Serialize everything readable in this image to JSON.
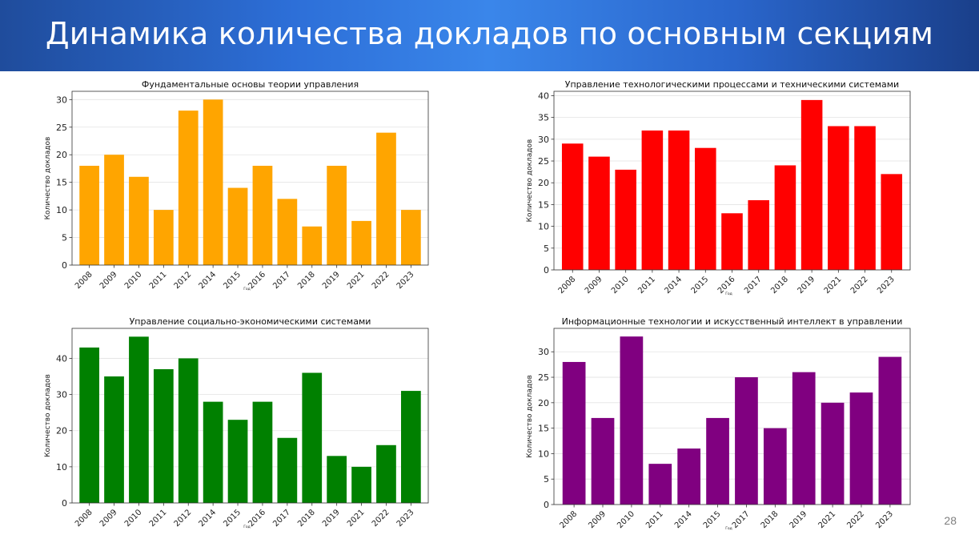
{
  "slide": {
    "title": "Динамика количества докладов по основным секциям",
    "page_number": "28"
  },
  "chart_data": [
    {
      "type": "bar",
      "title": "Фундаментальные основы теории управления",
      "xlabel": "Год",
      "ylabel": "Количество докладов",
      "categories": [
        "2008",
        "2009",
        "2010",
        "2011",
        "2012",
        "2014",
        "2015",
        "2016",
        "2017",
        "2018",
        "2019",
        "2021",
        "2022",
        "2023"
      ],
      "values": [
        18,
        20,
        16,
        10,
        28,
        30,
        14,
        18,
        12,
        7,
        18,
        8,
        24,
        10
      ],
      "ylim": [
        0,
        31.5
      ],
      "yticks": [
        0,
        5,
        10,
        15,
        20,
        25,
        30
      ],
      "color": "#FFA500",
      "grid": true
    },
    {
      "type": "bar",
      "title": "Управление технологическими процессами и техническими системами",
      "xlabel": "Год",
      "ylabel": "Количество докладов",
      "categories": [
        "2008",
        "2009",
        "2010",
        "2011",
        "2014",
        "2015",
        "2016",
        "2017",
        "2018",
        "2019",
        "2021",
        "2022",
        "2023"
      ],
      "values": [
        29,
        26,
        23,
        32,
        32,
        28,
        13,
        16,
        24,
        39,
        33,
        33,
        22
      ],
      "ylim": [
        0,
        41
      ],
      "yticks": [
        0,
        5,
        10,
        15,
        20,
        25,
        30,
        35,
        40
      ],
      "color": "#FF0000",
      "grid": true
    },
    {
      "type": "bar",
      "title": "Управление социально-экономическими системами",
      "xlabel": "Год",
      "ylabel": "Количество докладов",
      "categories": [
        "2008",
        "2009",
        "2010",
        "2011",
        "2012",
        "2014",
        "2015",
        "2016",
        "2017",
        "2018",
        "2019",
        "2021",
        "2022",
        "2023"
      ],
      "values": [
        43,
        35,
        46,
        37,
        40,
        28,
        23,
        28,
        18,
        36,
        13,
        10,
        16,
        31
      ],
      "ylim": [
        0,
        48.3
      ],
      "yticks": [
        0,
        10,
        20,
        30,
        40
      ],
      "color": "#008000",
      "grid": true
    },
    {
      "type": "bar",
      "title": "Информационные технологии и искусственный интеллект в управлении",
      "xlabel": "Год",
      "ylabel": "Количество докладов",
      "categories": [
        "2008",
        "2009",
        "2010",
        "2011",
        "2014",
        "2015",
        "2017",
        "2018",
        "2019",
        "2021",
        "2022",
        "2023"
      ],
      "values": [
        28,
        17,
        33,
        8,
        11,
        17,
        25,
        15,
        26,
        20,
        22,
        29
      ],
      "ylim": [
        0,
        34.6
      ],
      "yticks": [
        0,
        5,
        10,
        15,
        20,
        25,
        30
      ],
      "color": "#800080",
      "grid": true
    }
  ]
}
